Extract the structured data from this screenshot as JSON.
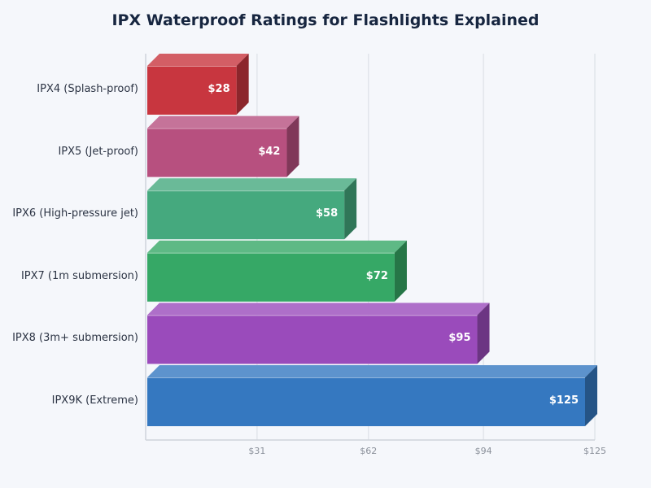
{
  "title": "IPX Waterproof Ratings for Flashlights Explained",
  "chart_data": {
    "type": "bar",
    "orientation": "horizontal",
    "title": "IPX Waterproof Ratings for Flashlights Explained",
    "xlabel": "",
    "ylabel": "",
    "categories": [
      "IPX4 (Splash-proof)",
      "IPX5 (Jet-proof)",
      "IPX6 (High-pressure jet)",
      "IPX7 (1m submersion)",
      "IPX8 (3m+ submersion)",
      "IPX9K (Extreme)"
    ],
    "values": [
      28,
      42,
      58,
      72,
      95,
      125
    ],
    "value_labels": [
      "$28",
      "$42",
      "$58",
      "$72",
      "$95",
      "$125"
    ],
    "colors": [
      "#c8363f",
      "#b7507f",
      "#45a97e",
      "#36a866",
      "#9a4bbb",
      "#3578c0"
    ],
    "xlim": [
      0,
      125
    ],
    "xticks": [
      31,
      62,
      94,
      125
    ],
    "xtick_labels": [
      "$31",
      "$62",
      "$94",
      "$125"
    ],
    "grid": "vertical",
    "style": "3d-bars",
    "legend": "none"
  }
}
